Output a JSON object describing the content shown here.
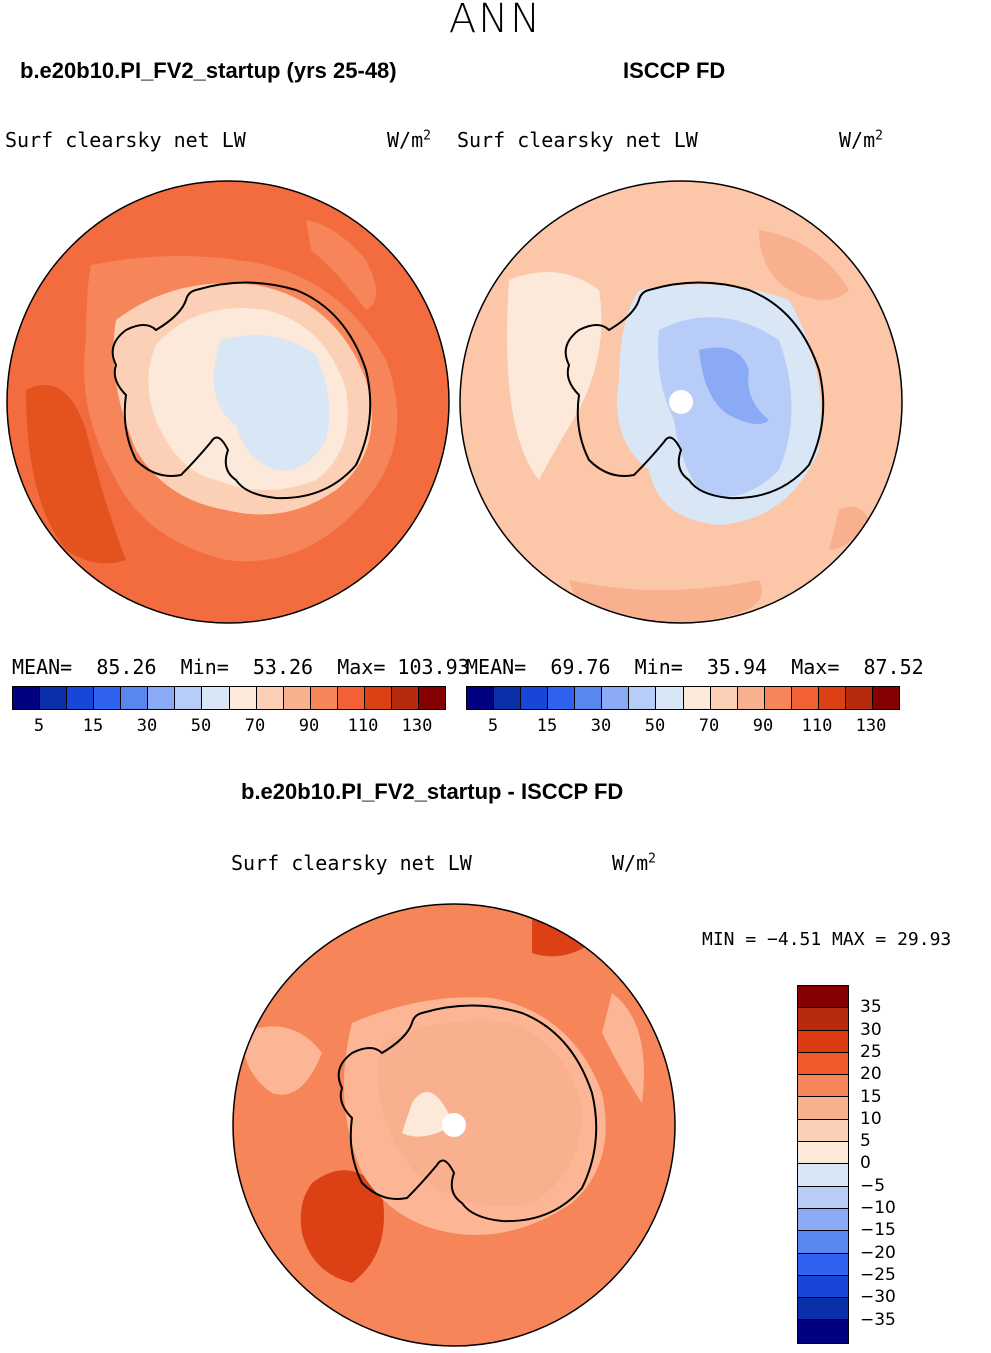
{
  "season": "ANN",
  "panels": [
    {
      "case_title": "b.e20b10.PI_FV2_startup (yrs 25-48)",
      "variable": "Surf clearsky net LW",
      "units_base": "W/m",
      "units_exp": "2",
      "stats": {
        "mean_label": "MEAN=",
        "mean": "85.26",
        "min_label": "Min=",
        "min": "53.26",
        "max_label": "Max=",
        "max": "103.93"
      }
    },
    {
      "case_title": "ISCCP FD",
      "variable": "Surf clearsky net LW",
      "units_base": "W/m",
      "units_exp": "2",
      "stats": {
        "mean_label": "MEAN=",
        "mean": "69.76",
        "min_label": "Min=",
        "min": "35.94",
        "max_label": "Max=",
        "max": "87.52"
      }
    }
  ],
  "abs_colorbar": {
    "colors": [
      "#000080",
      "#0a2fa8",
      "#1846d8",
      "#3062f0",
      "#5a86f0",
      "#8aaaf5",
      "#b7cdf8",
      "#d8e6f6",
      "#fde9da",
      "#fcd0b6",
      "#f9b08e",
      "#f6855a",
      "#f26135",
      "#dc4015",
      "#b82a0c",
      "#850000"
    ],
    "tick_labels": [
      "5",
      "15",
      "30",
      "50",
      "70",
      "90",
      "110",
      "130"
    ]
  },
  "diff": {
    "title": "b.e20b10.PI_FV2_startup - ISCCP FD",
    "variable": "Surf clearsky net LW",
    "units_base": "W/m",
    "units_exp": "2",
    "minmax_text": "MIN =  −4.51 MAX =  29.93",
    "colorbar": {
      "colors": [
        "#850000",
        "#b82a0c",
        "#dc3a10",
        "#f05a2a",
        "#f6855a",
        "#f9b08e",
        "#fcd0b6",
        "#fde9da",
        "#d8e6f6",
        "#b7cdf8",
        "#8aaaf5",
        "#5a86f0",
        "#3062f0",
        "#1846d8",
        "#0a2fa8",
        "#000080"
      ],
      "tick_labels": [
        "35",
        "30",
        "25",
        "20",
        "15",
        "10",
        "5",
        "0",
        "−5",
        "−10",
        "−15",
        "−20",
        "−25",
        "−30",
        "−35"
      ]
    }
  },
  "map_colors": {
    "ocean_model": "#f26c3f",
    "ocean_model_dark": "#e4531d",
    "coast_model": "#f6855a",
    "ice_edge_model": "#fcd0b6",
    "ice_model": "#fde9da",
    "plateau_model": "#d8e6f6",
    "ocean_obs": "#fcc6a8",
    "ocean_obs_light": "#fde9da",
    "ocean_obs_dark": "#f9b08e",
    "ice_obs": "#d8e6f6",
    "plateau_obs": "#b7cdf8",
    "dome_obs": "#8aaaf5",
    "diff_ocean": "#f6855a",
    "diff_ocean_dark": "#dc4015",
    "diff_ocean_light": "#fcb696",
    "diff_ice": "#fde9da",
    "diff_ice_mid": "#f9b08e",
    "coast_line": "#000000"
  }
}
